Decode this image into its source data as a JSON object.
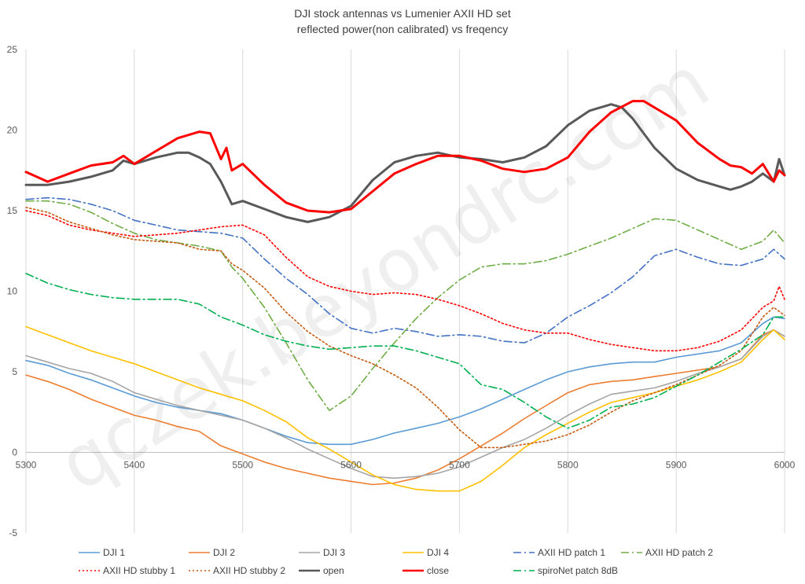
{
  "chart_data": {
    "type": "line",
    "title": [
      "DJI stock antennas vs Lumenier AXII HD set",
      "reflected power(non calibrated) vs freqency"
    ],
    "watermark": "qczek.beyondrc.com",
    "xlim": [
      5300,
      6000
    ],
    "ylim": [
      -5,
      25
    ],
    "xticks": [
      5300,
      5400,
      5500,
      5600,
      5700,
      5800,
      5900,
      6000
    ],
    "yticks": [
      -5,
      0,
      5,
      10,
      15,
      20,
      25
    ],
    "grid": "vertical",
    "legend_position": "bottom",
    "series": [
      {
        "name": "DJI 1",
        "color": "#5b9bd5",
        "dash": "solid",
        "width": 1.6,
        "x": [
          5300,
          5320,
          5340,
          5360,
          5380,
          5400,
          5420,
          5440,
          5460,
          5480,
          5500,
          5520,
          5540,
          5560,
          5580,
          5600,
          5620,
          5640,
          5660,
          5680,
          5700,
          5720,
          5740,
          5760,
          5780,
          5800,
          5820,
          5840,
          5860,
          5880,
          5900,
          5920,
          5940,
          5960,
          5980,
          5990,
          6000
        ],
        "y": [
          5.7,
          5.4,
          4.9,
          4.5,
          4.0,
          3.5,
          3.1,
          2.8,
          2.6,
          2.4,
          2.0,
          1.5,
          1.0,
          0.6,
          0.5,
          0.5,
          0.8,
          1.2,
          1.5,
          1.8,
          2.2,
          2.7,
          3.3,
          3.9,
          4.5,
          5.0,
          5.3,
          5.5,
          5.6,
          5.6,
          5.9,
          6.1,
          6.3,
          6.8,
          8.0,
          8.4,
          8.3
        ]
      },
      {
        "name": "DJI 2",
        "color": "#ed7d31",
        "dash": "solid",
        "width": 1.6,
        "x": [
          5300,
          5320,
          5340,
          5360,
          5380,
          5400,
          5420,
          5440,
          5460,
          5480,
          5500,
          5520,
          5540,
          5560,
          5580,
          5600,
          5620,
          5640,
          5660,
          5680,
          5700,
          5720,
          5740,
          5760,
          5780,
          5800,
          5820,
          5840,
          5860,
          5880,
          5900,
          5920,
          5940,
          5960,
          5980,
          5990,
          6000
        ],
        "y": [
          4.8,
          4.4,
          3.9,
          3.3,
          2.8,
          2.3,
          2.0,
          1.6,
          1.3,
          0.4,
          -0.1,
          -0.6,
          -1.0,
          -1.3,
          -1.6,
          -1.8,
          -2.0,
          -1.9,
          -1.6,
          -1.1,
          -0.4,
          0.4,
          1.2,
          2.1,
          2.9,
          3.7,
          4.2,
          4.4,
          4.5,
          4.7,
          4.9,
          5.1,
          5.3,
          5.8,
          7.3,
          7.6,
          7.2
        ]
      },
      {
        "name": "DJI 3",
        "color": "#a5a5a5",
        "dash": "solid",
        "width": 1.6,
        "x": [
          5300,
          5320,
          5340,
          5360,
          5380,
          5400,
          5420,
          5440,
          5460,
          5480,
          5500,
          5520,
          5540,
          5560,
          5580,
          5600,
          5620,
          5640,
          5660,
          5680,
          5700,
          5720,
          5740,
          5760,
          5780,
          5800,
          5820,
          5840,
          5860,
          5880,
          5900,
          5920,
          5940,
          5960,
          5980,
          5990,
          6000
        ],
        "y": [
          6.0,
          5.6,
          5.2,
          4.9,
          4.4,
          3.7,
          3.3,
          2.9,
          2.6,
          2.3,
          2.0,
          1.5,
          0.9,
          0.2,
          -0.4,
          -1.0,
          -1.5,
          -1.6,
          -1.5,
          -1.3,
          -0.9,
          -0.3,
          0.3,
          0.8,
          1.5,
          2.3,
          3.0,
          3.6,
          3.8,
          4.0,
          4.4,
          4.9,
          5.3,
          5.8,
          7.2,
          7.6,
          7.2
        ]
      },
      {
        "name": "DJI 4",
        "color": "#ffc000",
        "dash": "solid",
        "width": 1.6,
        "x": [
          5300,
          5320,
          5340,
          5360,
          5380,
          5400,
          5420,
          5440,
          5460,
          5480,
          5500,
          5520,
          5540,
          5560,
          5580,
          5600,
          5620,
          5640,
          5660,
          5680,
          5700,
          5720,
          5740,
          5760,
          5780,
          5800,
          5820,
          5840,
          5860,
          5880,
          5900,
          5920,
          5940,
          5960,
          5980,
          5990,
          6000
        ],
        "y": [
          7.8,
          7.3,
          6.8,
          6.3,
          5.9,
          5.5,
          5.0,
          4.5,
          4.0,
          3.6,
          3.2,
          2.6,
          1.9,
          0.9,
          0.2,
          -0.6,
          -1.4,
          -2.0,
          -2.3,
          -2.4,
          -2.4,
          -1.8,
          -0.8,
          0.3,
          1.1,
          1.8,
          2.5,
          3.1,
          3.4,
          3.7,
          4.1,
          4.5,
          5.0,
          5.6,
          7.0,
          7.6,
          7.0
        ]
      },
      {
        "name": "AXII HD patch 1",
        "color": "#4472c4",
        "dash": "10,4,2,4",
        "width": 1.6,
        "x": [
          5300,
          5320,
          5340,
          5360,
          5380,
          5400,
          5420,
          5440,
          5460,
          5480,
          5500,
          5520,
          5540,
          5560,
          5580,
          5600,
          5620,
          5640,
          5660,
          5680,
          5700,
          5720,
          5740,
          5760,
          5780,
          5800,
          5820,
          5840,
          5860,
          5880,
          5900,
          5920,
          5940,
          5960,
          5980,
          5990,
          6000
        ],
        "y": [
          15.7,
          15.8,
          15.7,
          15.4,
          15.0,
          14.4,
          14.1,
          13.8,
          13.7,
          13.6,
          13.3,
          12.0,
          10.8,
          9.8,
          8.6,
          7.7,
          7.4,
          7.7,
          7.5,
          7.2,
          7.3,
          7.2,
          6.9,
          6.8,
          7.4,
          8.4,
          9.1,
          9.9,
          10.9,
          12.2,
          12.6,
          12.1,
          11.7,
          11.6,
          12.0,
          12.6,
          12.0
        ]
      },
      {
        "name": "AXII HD patch 2",
        "color": "#70ad47",
        "dash": "10,4,2,4",
        "width": 1.6,
        "x": [
          5300,
          5320,
          5340,
          5360,
          5380,
          5400,
          5420,
          5440,
          5460,
          5480,
          5490,
          5500,
          5520,
          5540,
          5560,
          5580,
          5600,
          5620,
          5640,
          5660,
          5680,
          5700,
          5720,
          5740,
          5760,
          5780,
          5800,
          5820,
          5840,
          5860,
          5880,
          5900,
          5920,
          5940,
          5960,
          5980,
          5990,
          6000
        ],
        "y": [
          15.6,
          15.6,
          15.4,
          14.9,
          14.2,
          13.6,
          13.2,
          13.0,
          12.8,
          12.5,
          11.5,
          10.8,
          9.0,
          6.8,
          4.5,
          2.6,
          3.5,
          5.2,
          6.8,
          8.3,
          9.6,
          10.7,
          11.5,
          11.7,
          11.7,
          11.9,
          12.3,
          12.8,
          13.3,
          13.9,
          14.5,
          14.4,
          13.8,
          13.2,
          12.6,
          13.1,
          13.8,
          13.0
        ]
      },
      {
        "name": "AXII HD stubby 1",
        "color": "#ff0000",
        "dash": "2,3",
        "width": 1.6,
        "x": [
          5300,
          5320,
          5340,
          5360,
          5380,
          5400,
          5420,
          5440,
          5460,
          5480,
          5500,
          5520,
          5540,
          5560,
          5580,
          5600,
          5620,
          5640,
          5660,
          5680,
          5700,
          5720,
          5740,
          5760,
          5780,
          5800,
          5820,
          5840,
          5860,
          5880,
          5900,
          5920,
          5940,
          5960,
          5980,
          5990,
          5995,
          6000
        ],
        "y": [
          15.0,
          14.7,
          14.1,
          13.8,
          13.6,
          13.4,
          13.5,
          13.6,
          13.8,
          14.0,
          14.1,
          13.5,
          12.1,
          10.9,
          10.3,
          10.0,
          9.8,
          9.9,
          9.8,
          9.5,
          9.1,
          8.6,
          8.0,
          7.6,
          7.4,
          7.4,
          7.0,
          6.7,
          6.5,
          6.3,
          6.3,
          6.5,
          6.9,
          7.6,
          9.0,
          9.4,
          10.3,
          9.5
        ]
      },
      {
        "name": "AXII HD stubby 2",
        "color": "#c55a11",
        "dash": "2,3",
        "width": 1.6,
        "x": [
          5300,
          5320,
          5340,
          5360,
          5380,
          5400,
          5420,
          5440,
          5460,
          5480,
          5490,
          5500,
          5520,
          5540,
          5560,
          5580,
          5600,
          5620,
          5640,
          5660,
          5680,
          5700,
          5720,
          5740,
          5760,
          5780,
          5800,
          5820,
          5840,
          5860,
          5880,
          5900,
          5920,
          5940,
          5960,
          5980,
          5990,
          6000
        ],
        "y": [
          15.2,
          14.9,
          14.3,
          13.9,
          13.5,
          13.2,
          13.1,
          13.0,
          12.6,
          12.5,
          11.7,
          11.3,
          10.2,
          8.7,
          7.5,
          6.6,
          6.0,
          5.5,
          4.8,
          4.0,
          2.8,
          1.4,
          0.3,
          0.3,
          0.5,
          0.7,
          1.1,
          1.7,
          2.5,
          3.2,
          3.7,
          4.2,
          4.8,
          5.4,
          6.3,
          8.4,
          9.0,
          8.5
        ]
      },
      {
        "name": "open",
        "color": "#595959",
        "dash": "solid",
        "width": 3,
        "x": [
          5300,
          5320,
          5340,
          5360,
          5380,
          5390,
          5400,
          5420,
          5440,
          5450,
          5460,
          5470,
          5480,
          5490,
          5500,
          5520,
          5540,
          5560,
          5580,
          5600,
          5620,
          5640,
          5660,
          5680,
          5700,
          5720,
          5740,
          5760,
          5780,
          5800,
          5820,
          5840,
          5850,
          5860,
          5870,
          5880,
          5900,
          5920,
          5940,
          5950,
          5960,
          5970,
          5980,
          5990,
          5995,
          6000
        ],
        "y": [
          16.6,
          16.6,
          16.8,
          17.1,
          17.5,
          18.1,
          17.9,
          18.3,
          18.6,
          18.6,
          18.3,
          17.9,
          16.8,
          15.4,
          15.6,
          15.1,
          14.6,
          14.3,
          14.6,
          15.3,
          16.9,
          18.0,
          18.4,
          18.6,
          18.3,
          18.2,
          18.0,
          18.3,
          19.0,
          20.3,
          21.2,
          21.6,
          21.4,
          20.7,
          19.8,
          18.9,
          17.6,
          16.9,
          16.5,
          16.3,
          16.5,
          16.8,
          17.3,
          16.8,
          18.2,
          17.2
        ]
      },
      {
        "name": "close",
        "color": "#ff0000",
        "dash": "solid",
        "width": 3,
        "x": [
          5300,
          5320,
          5340,
          5360,
          5380,
          5390,
          5400,
          5420,
          5440,
          5460,
          5470,
          5480,
          5485,
          5490,
          5500,
          5520,
          5540,
          5560,
          5580,
          5600,
          5620,
          5640,
          5660,
          5680,
          5700,
          5720,
          5740,
          5760,
          5780,
          5800,
          5820,
          5840,
          5860,
          5870,
          5880,
          5900,
          5920,
          5940,
          5950,
          5960,
          5970,
          5980,
          5990,
          5995,
          6000
        ],
        "y": [
          17.4,
          16.8,
          17.3,
          17.8,
          18.0,
          18.4,
          17.9,
          18.7,
          19.5,
          19.9,
          19.8,
          18.2,
          18.9,
          17.5,
          17.9,
          16.6,
          15.5,
          15.0,
          14.9,
          15.1,
          16.2,
          17.3,
          17.9,
          18.4,
          18.4,
          18.1,
          17.6,
          17.4,
          17.6,
          18.3,
          19.9,
          21.1,
          21.8,
          21.8,
          21.4,
          20.6,
          19.2,
          18.2,
          17.8,
          17.7,
          17.3,
          17.9,
          16.8,
          17.5,
          17.2
        ]
      },
      {
        "name": "spiroNet patch 8dB",
        "color": "#00b050",
        "dash": "10,4,2,4",
        "width": 1.6,
        "x": [
          5300,
          5320,
          5340,
          5360,
          5380,
          5400,
          5420,
          5440,
          5460,
          5480,
          5500,
          5520,
          5540,
          5560,
          5580,
          5600,
          5620,
          5640,
          5660,
          5680,
          5700,
          5720,
          5740,
          5760,
          5780,
          5800,
          5820,
          5840,
          5860,
          5880,
          5900,
          5920,
          5940,
          5960,
          5980,
          5990,
          6000
        ],
        "y": [
          11.1,
          10.5,
          10.1,
          9.8,
          9.6,
          9.5,
          9.5,
          9.5,
          9.2,
          8.4,
          7.9,
          7.3,
          6.9,
          6.6,
          6.4,
          6.5,
          6.6,
          6.6,
          6.3,
          5.9,
          5.5,
          4.2,
          3.9,
          3.1,
          2.2,
          1.5,
          2.0,
          2.8,
          3.0,
          3.4,
          4.1,
          4.8,
          5.6,
          6.4,
          7.3,
          8.4,
          8.4
        ]
      }
    ]
  }
}
